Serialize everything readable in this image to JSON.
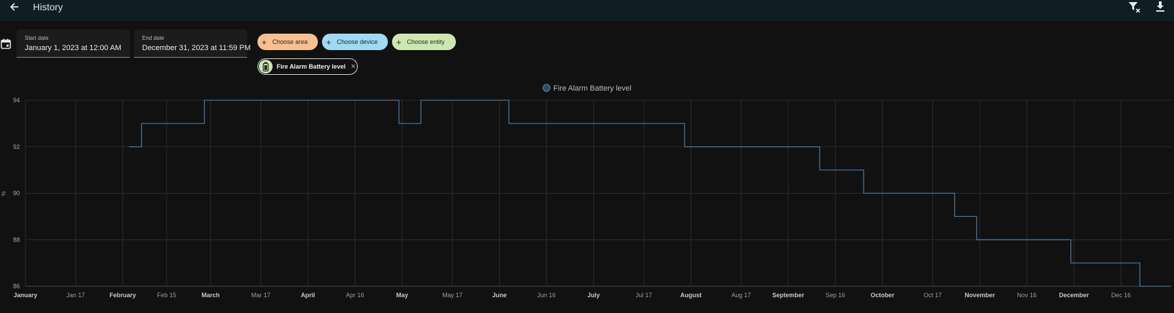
{
  "header": {
    "title": "History"
  },
  "icons": {
    "back": "arrow-left-icon",
    "clear_filter": "filter-remove-icon",
    "download": "download-icon",
    "calendar": "calendar-icon",
    "battery": "battery-icon"
  },
  "date_range": {
    "start_label": "Start date",
    "start_value": "January 1, 2023 at 12:00 AM",
    "end_label": "End date",
    "end_value": "December 31, 2023 at 11:59 PM"
  },
  "targets": {
    "choose_area": "Choose area",
    "choose_device": "Choose device",
    "choose_entity": "Choose entity",
    "selected_entity": "Fire Alarm Battery level",
    "remove_symbol": "×"
  },
  "colors": {
    "area_chip": "#f6c08f",
    "device_chip": "#9fd9f3",
    "entity_chip": "#cde7b0",
    "series_line": "#44739e"
  },
  "chart_data": {
    "type": "line",
    "step": true,
    "ylabel": "%",
    "ylim": [
      86,
      94
    ],
    "y_ticks": [
      86,
      88,
      90,
      92,
      94
    ],
    "grid": true,
    "legend_position": "top-center",
    "x_range": [
      "2023-01-01",
      "2024-01-01"
    ],
    "x_ticks": [
      {
        "date": "2023-01-01",
        "label": "January",
        "bold": true
      },
      {
        "date": "2023-01-17",
        "label": "Jan 17",
        "bold": false
      },
      {
        "date": "2023-02-01",
        "label": "February",
        "bold": true
      },
      {
        "date": "2023-02-15",
        "label": "Feb 15",
        "bold": false
      },
      {
        "date": "2023-03-01",
        "label": "March",
        "bold": true
      },
      {
        "date": "2023-03-17",
        "label": "Mar 17",
        "bold": false
      },
      {
        "date": "2023-04-01",
        "label": "April",
        "bold": true
      },
      {
        "date": "2023-04-16",
        "label": "Apr 16",
        "bold": false
      },
      {
        "date": "2023-05-01",
        "label": "May",
        "bold": true
      },
      {
        "date": "2023-05-17",
        "label": "May 17",
        "bold": false
      },
      {
        "date": "2023-06-01",
        "label": "June",
        "bold": true
      },
      {
        "date": "2023-06-16",
        "label": "Jun 16",
        "bold": false
      },
      {
        "date": "2023-07-01",
        "label": "July",
        "bold": true
      },
      {
        "date": "2023-07-17",
        "label": "Jul 17",
        "bold": false
      },
      {
        "date": "2023-08-01",
        "label": "August",
        "bold": true
      },
      {
        "date": "2023-08-17",
        "label": "Aug 17",
        "bold": false
      },
      {
        "date": "2023-09-01",
        "label": "September",
        "bold": true
      },
      {
        "date": "2023-09-16",
        "label": "Sep 16",
        "bold": false
      },
      {
        "date": "2023-10-01",
        "label": "October",
        "bold": true
      },
      {
        "date": "2023-10-17",
        "label": "Oct 17",
        "bold": false
      },
      {
        "date": "2023-11-01",
        "label": "November",
        "bold": true
      },
      {
        "date": "2023-11-16",
        "label": "Nov 16",
        "bold": false
      },
      {
        "date": "2023-12-01",
        "label": "December",
        "bold": true
      },
      {
        "date": "2023-12-16",
        "label": "Dec 16",
        "bold": false
      }
    ],
    "series": [
      {
        "name": "Fire Alarm Battery level",
        "points": [
          {
            "x": "2023-02-03",
            "y": 92
          },
          {
            "x": "2023-02-07",
            "y": 93
          },
          {
            "x": "2023-02-27",
            "y": 94
          },
          {
            "x": "2023-04-30",
            "y": 93
          },
          {
            "x": "2023-05-07",
            "y": 94
          },
          {
            "x": "2023-06-04",
            "y": 93
          },
          {
            "x": "2023-07-30",
            "y": 92
          },
          {
            "x": "2023-09-11",
            "y": 91
          },
          {
            "x": "2023-09-25",
            "y": 90
          },
          {
            "x": "2023-10-24",
            "y": 89
          },
          {
            "x": "2023-10-31",
            "y": 88
          },
          {
            "x": "2023-11-30",
            "y": 87
          },
          {
            "x": "2023-12-22",
            "y": 86
          },
          {
            "x": "2024-01-01",
            "y": 86
          }
        ]
      }
    ]
  }
}
